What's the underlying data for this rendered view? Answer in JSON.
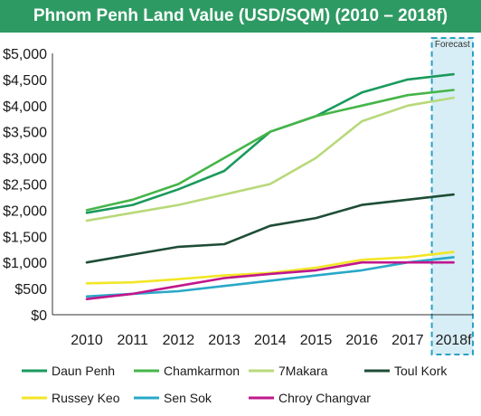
{
  "chart_data": {
    "type": "line",
    "title": "Phnom Penh Land Value (USD/SQM) (2010 – 2018f)",
    "x": [
      "2010",
      "2011",
      "2012",
      "2013",
      "2014",
      "2015",
      "2016",
      "2017",
      "2018f"
    ],
    "y_ticks": [
      "$0",
      "$500",
      "$1,000",
      "$1,500",
      "$2,000",
      "$2,500",
      "$3,000",
      "$3,500",
      "$4,000",
      "$4,500",
      "$5,000"
    ],
    "ylim": [
      0,
      5000
    ],
    "grid": false,
    "legend_position": "bottom",
    "forecast_label": "Forecast",
    "series": [
      {
        "name": "Daun Penh",
        "color": "#1a9a5c",
        "values": [
          1950,
          2100,
          2400,
          2750,
          3500,
          3800,
          4250,
          4500,
          4600
        ]
      },
      {
        "name": "Chamkarmon",
        "color": "#45b549",
        "values": [
          2000,
          2200,
          2500,
          3000,
          3500,
          3800,
          4000,
          4200,
          4300
        ]
      },
      {
        "name": "7Makara",
        "color": "#b8d97a",
        "values": [
          1800,
          1950,
          2100,
          2300,
          2500,
          3000,
          3700,
          4000,
          4150
        ]
      },
      {
        "name": "Toul Kork",
        "color": "#1e4d36",
        "values": [
          1000,
          1150,
          1300,
          1350,
          1700,
          1850,
          2100,
          2200,
          2300
        ]
      },
      {
        "name": "Russey Keo",
        "color": "#f2e626",
        "values": [
          600,
          620,
          680,
          750,
          800,
          900,
          1050,
          1100,
          1200
        ]
      },
      {
        "name": "Sen Sok",
        "color": "#29a8c8",
        "values": [
          350,
          400,
          450,
          550,
          650,
          750,
          850,
          1000,
          1100
        ]
      },
      {
        "name": "Chroy Changvar",
        "color": "#c0178c",
        "values": [
          300,
          400,
          550,
          700,
          780,
          850,
          1000,
          1000,
          1000
        ]
      }
    ]
  }
}
